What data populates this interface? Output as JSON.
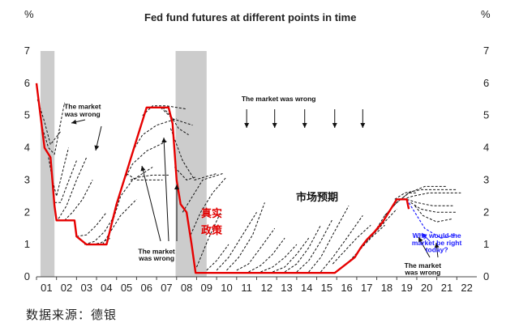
{
  "chart_data": {
    "type": "line",
    "title": "Fed fund futures at different points in time",
    "y_unit_left": "%",
    "y_unit_right": "%",
    "ylim": [
      0,
      7
    ],
    "yticks": [
      "0",
      "1",
      "2",
      "3",
      "4",
      "5",
      "6",
      "7"
    ],
    "xlim": [
      2001,
      2023
    ],
    "xticks": [
      "01",
      "02",
      "03",
      "04",
      "05",
      "06",
      "07",
      "08",
      "09",
      "10",
      "11",
      "12",
      "13",
      "14",
      "15",
      "16",
      "17",
      "18",
      "19",
      "20",
      "21",
      "22"
    ],
    "recessions": [
      [
        2001.2,
        2001.9
      ],
      [
        2007.95,
        2009.5
      ]
    ],
    "actual_rate": {
      "name": "真实政策",
      "color": "#e60000",
      "x": [
        2001.0,
        2001.2,
        2001.4,
        2001.7,
        2001.9,
        2002.0,
        2002.2,
        2002.9,
        2003.0,
        2003.5,
        2004.5,
        2004.7,
        2005.0,
        2005.5,
        2006.0,
        2006.5,
        2007.6,
        2007.8,
        2008.0,
        2008.2,
        2008.5,
        2008.75,
        2008.95,
        2015.9,
        2016.9,
        2017.2,
        2017.5,
        2017.9,
        2018.3,
        2018.7,
        2019.0,
        2019.5,
        2019.6
      ],
      "y": [
        6.0,
        5.0,
        4.0,
        3.7,
        2.2,
        1.75,
        1.75,
        1.75,
        1.25,
        1.0,
        1.0,
        1.5,
        2.25,
        3.25,
        4.25,
        5.25,
        5.25,
        4.75,
        3.0,
        2.25,
        2.0,
        1.0,
        0.12,
        0.12,
        0.6,
        0.9,
        1.15,
        1.4,
        1.7,
        2.1,
        2.4,
        2.4,
        2.1
      ]
    },
    "futures_curves": [
      {
        "x": [
          2001.05,
          2001.4,
          2001.7,
          2002.2
        ],
        "y": [
          5.5,
          4.8,
          4.1,
          4.5
        ]
      },
      {
        "x": [
          2001.3,
          2001.6,
          2001.9,
          2002.4
        ],
        "y": [
          4.6,
          4.0,
          3.8,
          5.4
        ]
      },
      {
        "x": [
          2001.6,
          2001.8,
          2002.0,
          2002.6
        ],
        "y": [
          3.7,
          3.0,
          2.5,
          4.0
        ]
      },
      {
        "x": [
          2001.9,
          2002.2,
          2002.5,
          2003.0
        ],
        "y": [
          2.3,
          2.3,
          2.8,
          3.6
        ]
      },
      {
        "x": [
          2002.1,
          2002.5,
          2003.0,
          2003.5
        ],
        "y": [
          1.8,
          2.2,
          3.0,
          3.7
        ]
      },
      {
        "x": [
          2002.4,
          2002.8,
          2003.3,
          2003.8
        ],
        "y": [
          1.75,
          2.0,
          2.4,
          3.0
        ]
      },
      {
        "x": [
          2003.0,
          2003.5,
          2004.0,
          2004.5
        ],
        "y": [
          1.25,
          1.3,
          1.6,
          2.0
        ]
      },
      {
        "x": [
          2003.4,
          2003.9,
          2004.4,
          2004.8
        ],
        "y": [
          1.0,
          1.1,
          1.4,
          1.8
        ]
      },
      {
        "x": [
          2003.8,
          2004.2,
          2004.7
        ],
        "y": [
          1.0,
          1.05,
          1.2
        ]
      },
      {
        "x": [
          2004.3,
          2004.7,
          2005.2,
          2006.0
        ],
        "y": [
          1.0,
          1.4,
          1.9,
          2.4
        ]
      },
      {
        "x": [
          2004.8,
          2005.2,
          2005.8,
          2006.8
        ],
        "y": [
          1.7,
          2.5,
          3.0,
          3.4
        ]
      },
      {
        "x": [
          2005.3,
          2005.8,
          2006.5,
          2007.5
        ],
        "y": [
          2.9,
          3.5,
          3.9,
          4.2
        ]
      },
      {
        "x": [
          2005.8,
          2006.3,
          2007.0,
          2008.0
        ],
        "y": [
          3.9,
          4.4,
          4.7,
          4.9
        ]
      },
      {
        "x": [
          2006.3,
          2006.8,
          2007.5,
          2008.5
        ],
        "y": [
          5.0,
          5.3,
          5.3,
          5.2
        ]
      },
      {
        "x": [
          2006.8,
          2007.2,
          2007.8,
          2008.8
        ],
        "y": [
          5.25,
          5.25,
          4.9,
          4.7
        ]
      },
      {
        "x": [
          2007.3,
          2007.7,
          2008.1,
          2008.6
        ],
        "y": [
          5.25,
          5.0,
          4.6,
          4.4
        ]
      },
      {
        "x": [
          2005.5,
          2006.0,
          2006.5,
          2007.3
        ],
        "y": [
          3.2,
          3.0,
          3.0,
          3.0
        ]
      },
      {
        "x": [
          2005.7,
          2006.2,
          2006.8,
          2007.6
        ],
        "y": [
          3.0,
          3.1,
          3.15,
          3.15
        ]
      },
      {
        "x": [
          2007.7,
          2008.3,
          2008.9,
          2010.0
        ],
        "y": [
          4.6,
          3.6,
          3.0,
          3.2
        ]
      },
      {
        "x": [
          2007.9,
          2008.5,
          2009.0
        ],
        "y": [
          3.4,
          3.0,
          3.1
        ]
      },
      {
        "x": [
          2008.3,
          2008.8,
          2009.3,
          2010.3
        ],
        "y": [
          2.0,
          2.5,
          3.0,
          3.2
        ]
      },
      {
        "x": [
          2008.7,
          2009.2,
          2009.8,
          2010.5
        ],
        "y": [
          1.3,
          2.0,
          2.6,
          3.1
        ]
      },
      {
        "x": [
          2009.0,
          2009.6,
          2010.2
        ],
        "y": [
          0.3,
          1.2,
          2.0
        ]
      },
      {
        "x": [
          2009.5,
          2010.0,
          2010.6
        ],
        "y": [
          0.2,
          0.5,
          1.0
        ]
      },
      {
        "x": [
          2010.0,
          2010.6,
          2011.3,
          2012.0
        ],
        "y": [
          0.2,
          0.6,
          1.3,
          2.0
        ]
      },
      {
        "x": [
          2010.5,
          2011.1,
          2011.8,
          2012.4
        ],
        "y": [
          0.2,
          0.6,
          1.3,
          2.3
        ]
      },
      {
        "x": [
          2011.0,
          2011.6,
          2012.2,
          2012.9
        ],
        "y": [
          0.2,
          0.4,
          0.9,
          1.5
        ]
      },
      {
        "x": [
          2011.6,
          2012.2,
          2012.8,
          2013.4
        ],
        "y": [
          0.15,
          0.35,
          0.7,
          1.2
        ]
      },
      {
        "x": [
          2012.2,
          2012.8,
          2013.4,
          2014.0
        ],
        "y": [
          0.15,
          0.3,
          0.6,
          1.0
        ]
      },
      {
        "x": [
          2012.8,
          2013.4,
          2014.0,
          2014.6
        ],
        "y": [
          0.15,
          0.3,
          0.7,
          1.2
        ]
      },
      {
        "x": [
          2013.4,
          2014.0,
          2014.6,
          2015.2
        ],
        "y": [
          0.15,
          0.4,
          0.9,
          1.6
        ]
      },
      {
        "x": [
          2014.0,
          2014.6,
          2015.2,
          2015.8
        ],
        "y": [
          0.15,
          0.5,
          1.1,
          1.8
        ]
      },
      {
        "x": [
          2014.6,
          2015.2,
          2015.8,
          2016.6
        ],
        "y": [
          0.15,
          0.6,
          1.3,
          2.2
        ]
      },
      {
        "x": [
          2015.2,
          2015.8,
          2016.5,
          2017.3
        ],
        "y": [
          0.15,
          0.6,
          1.2,
          1.9
        ]
      },
      {
        "x": [
          2015.8,
          2016.4,
          2017.0,
          2017.7
        ],
        "y": [
          0.4,
          0.8,
          1.2,
          1.6
        ]
      },
      {
        "x": [
          2016.5,
          2017.1,
          2017.7,
          2018.4
        ],
        "y": [
          0.4,
          0.8,
          1.2,
          1.6
        ]
      },
      {
        "x": [
          2017.2,
          2017.8,
          2018.4,
          2019.0
        ],
        "y": [
          0.9,
          1.3,
          1.7,
          2.1
        ]
      },
      {
        "x": [
          2017.9,
          2018.4,
          2019.0,
          2019.6,
          2020.0
        ],
        "y": [
          1.4,
          1.9,
          2.3,
          2.6,
          2.6
        ]
      },
      {
        "x": [
          2018.4,
          2019.0,
          2019.6,
          2020.4,
          2021.5
        ],
        "y": [
          1.9,
          2.3,
          2.6,
          2.8,
          2.8
        ]
      },
      {
        "x": [
          2018.9,
          2019.4,
          2020.2,
          2021.2,
          2022.0
        ],
        "y": [
          2.4,
          2.6,
          2.7,
          2.7,
          2.7
        ]
      },
      {
        "x": [
          2019.3,
          2019.8,
          2020.6,
          2021.6,
          2022.2
        ],
        "y": [
          2.4,
          2.5,
          2.6,
          2.6,
          2.6
        ]
      },
      {
        "x": [
          2019.5,
          2020.0,
          2020.8,
          2021.8
        ],
        "y": [
          2.4,
          2.3,
          2.2,
          2.2
        ]
      },
      {
        "x": [
          2019.7,
          2020.2,
          2021.0,
          2022.0
        ],
        "y": [
          2.3,
          2.1,
          2.0,
          2.0
        ]
      },
      {
        "x": [
          2019.9,
          2020.3,
          2021.0,
          2021.8
        ],
        "y": [
          2.2,
          1.9,
          1.7,
          1.8
        ]
      }
    ],
    "blue_curve": {
      "x": [
        2019.5,
        2019.9,
        2020.4,
        2021.2,
        2022.0
      ],
      "y": [
        2.4,
        2.0,
        1.5,
        1.2,
        1.3
      ],
      "color": "#1a1aff"
    },
    "text_marks": [
      {
        "text": "The market",
        "x": 2003.3,
        "y": 5.2
      },
      {
        "text": "was wrong",
        "x": 2003.3,
        "y": 4.97
      },
      {
        "text": "The market was wrong",
        "x": 2013.1,
        "y": 5.45
      },
      {
        "text": "The market",
        "x": 2007.0,
        "y": 0.72
      },
      {
        "text": "was wrong",
        "x": 2007.0,
        "y": 0.5
      },
      {
        "text": "The market",
        "x": 2020.3,
        "y": 0.28
      },
      {
        "text": "was wrong",
        "x": 2020.3,
        "y": 0.06
      }
    ],
    "blue_text_marks": [
      {
        "text": "Why would the",
        "x": 2021.0,
        "y": 1.2
      },
      {
        "text": "market be right",
        "x": 2021.0,
        "y": 0.98
      },
      {
        "text": "today?",
        "x": 2021.0,
        "y": 0.76
      }
    ],
    "cn_label_actual": [
      "真实",
      "政策"
    ],
    "cn_label_expect": "市场预期"
  },
  "source_note": "数据来源：德银"
}
